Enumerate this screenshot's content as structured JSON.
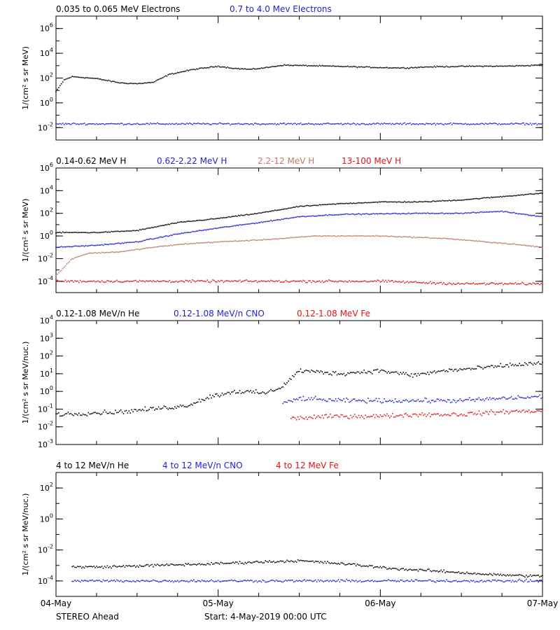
{
  "colors": {
    "black": "#000000",
    "blue": "#1f1fd6",
    "tan": "#c07a68",
    "red": "#e01414"
  },
  "x_axis": {
    "range": [
      "04-May",
      "07-May"
    ],
    "ticks": [
      "04-May",
      "05-May",
      "06-May",
      "07-May"
    ]
  },
  "footer": {
    "left": "STEREO Ahead",
    "start": "Start:  4-May-2019 00:00 UTC"
  },
  "chart_data": [
    {
      "type": "scatter",
      "ylabel": "1/(cm² s sr MeV)",
      "yscale": "log",
      "ylim": [
        0.001,
        10000000
      ],
      "yticks": [
        {
          "label": "10^-2",
          "value": 0.01
        },
        {
          "label": "10^0",
          "value": 1
        },
        {
          "label": "10^2",
          "value": 100
        },
        {
          "label": "10^4",
          "value": 10000
        },
        {
          "label": "10^6",
          "value": 1000000
        }
      ],
      "series": [
        {
          "name": "0.035 to 0.065 MeV Electrons",
          "color": "#000000",
          "x": [
            0.0,
            0.05,
            0.1,
            0.25,
            0.4,
            0.5,
            0.6,
            0.7,
            0.85,
            1.0,
            1.1,
            1.2,
            1.3,
            1.4,
            1.55,
            1.7,
            1.85,
            2.0,
            2.15,
            2.3,
            2.45,
            2.6,
            2.75,
            2.9,
            3.0
          ],
          "y": [
            8,
            70,
            130,
            90,
            40,
            35,
            45,
            200,
            500,
            900,
            600,
            500,
            700,
            1100,
            1000,
            900,
            800,
            700,
            650,
            800,
            850,
            900,
            900,
            1000,
            1200
          ]
        },
        {
          "name": "0.7 to 4.0 Mev Electrons",
          "color": "#1f1fd6",
          "x": [
            0.0,
            3.0
          ],
          "y": [
            0.02,
            0.02
          ]
        }
      ]
    },
    {
      "type": "scatter",
      "ylabel": "1/(cm² s sr MeV)",
      "yscale": "log",
      "ylim": [
        1e-05,
        1000000
      ],
      "yticks": [
        {
          "label": "10^-4",
          "value": 0.0001
        },
        {
          "label": "10^-2",
          "value": 0.01
        },
        {
          "label": "10^0",
          "value": 1
        },
        {
          "label": "10^2",
          "value": 100
        },
        {
          "label": "10^4",
          "value": 10000
        },
        {
          "label": "10^6",
          "value": 1000000
        }
      ],
      "series": [
        {
          "name": "0.14-0.62 MeV H",
          "color": "#000000",
          "x": [
            0.0,
            0.25,
            0.5,
            0.75,
            1.0,
            1.25,
            1.5,
            1.75,
            2.0,
            2.25,
            2.5,
            2.75,
            3.0
          ],
          "y": [
            2,
            2,
            3,
            15,
            35,
            100,
            400,
            700,
            1000,
            1000,
            1500,
            3000,
            6000
          ]
        },
        {
          "name": "0.62-2.22 MeV H",
          "color": "#1f1fd6",
          "x": [
            0.0,
            0.25,
            0.5,
            0.75,
            1.0,
            1.25,
            1.5,
            1.75,
            2.0,
            2.25,
            2.5,
            2.75,
            3.0
          ],
          "y": [
            0.1,
            0.15,
            0.3,
            1.5,
            5,
            15,
            50,
            80,
            90,
            100,
            100,
            150,
            50
          ]
        },
        {
          "name": "2.2-12 MeV H",
          "color": "#c07a68",
          "x": [
            0.0,
            0.1,
            0.2,
            0.4,
            0.6,
            0.8,
            1.0,
            1.2,
            1.4,
            1.6,
            2.0,
            2.4,
            2.8,
            3.0
          ],
          "y": [
            0.0003,
            0.01,
            0.03,
            0.04,
            0.1,
            0.2,
            0.3,
            0.4,
            0.6,
            1,
            1,
            0.6,
            0.2,
            0.1
          ]
        },
        {
          "name": "13-100 MeV H",
          "color": "#e01414",
          "x": [
            0.0,
            0.5,
            1.0,
            1.5,
            2.0,
            2.5,
            3.0
          ],
          "y": [
            0.0001,
            0.0001,
            0.0001,
            0.0001,
            0.0001,
            6e-05,
            6e-05
          ]
        }
      ]
    },
    {
      "type": "scatter",
      "ylabel": "1/(cm² s sr MeV/nuc.)",
      "yscale": "log",
      "ylim": [
        0.001,
        10000
      ],
      "yticks": [
        {
          "label": "10^-3",
          "value": 0.001
        },
        {
          "label": "10^-2",
          "value": 0.01
        },
        {
          "label": "10^-1",
          "value": 0.1
        },
        {
          "label": "10^0",
          "value": 1
        },
        {
          "label": "10^1",
          "value": 10
        },
        {
          "label": "10^2",
          "value": 100
        },
        {
          "label": "10^3",
          "value": 1000
        },
        {
          "label": "10^4",
          "value": 10000
        }
      ],
      "series": [
        {
          "name": "0.12-1.08 MeV/n He",
          "color": "#000000",
          "x": [
            0.0,
            0.4,
            0.8,
            0.95,
            1.1,
            1.3,
            1.4,
            1.5,
            1.75,
            2.0,
            2.2,
            2.4,
            2.6,
            2.8,
            3.0
          ],
          "y": [
            0.05,
            0.07,
            0.15,
            0.5,
            1,
            0.8,
            2,
            15,
            10,
            15,
            8,
            15,
            20,
            30,
            40
          ]
        },
        {
          "name": "0.12-1.08 MeV/n CNO",
          "color": "#1f1fd6",
          "x": [
            1.4,
            1.5,
            1.75,
            2.0,
            2.25,
            2.5,
            2.75,
            3.0
          ],
          "y": [
            0.2,
            0.4,
            0.3,
            0.3,
            0.3,
            0.3,
            0.4,
            0.5
          ]
        },
        {
          "name": "0.12-1.08 MeV Fe",
          "color": "#e01414",
          "x": [
            1.45,
            1.75,
            2.0,
            2.25,
            2.5,
            2.75,
            3.0
          ],
          "y": [
            0.03,
            0.04,
            0.04,
            0.05,
            0.05,
            0.07,
            0.08
          ]
        }
      ]
    },
    {
      "type": "scatter",
      "ylabel": "1/(cm² s sr MeV/nuc.)",
      "yscale": "log",
      "ylim": [
        1e-05,
        1000
      ],
      "yticks": [
        {
          "label": "10^-4",
          "value": 0.0001
        },
        {
          "label": "10^-2",
          "value": 0.01
        },
        {
          "label": "10^0",
          "value": 1
        },
        {
          "label": "10^2",
          "value": 100
        }
      ],
      "series": [
        {
          "name": "4 to 12 MeV/n He",
          "color": "#000000",
          "x": [
            0.1,
            0.3,
            0.6,
            0.9,
            1.2,
            1.5,
            1.8,
            2.1,
            2.4,
            2.7,
            3.0
          ],
          "y": [
            0.0008,
            0.0008,
            0.001,
            0.0012,
            0.0016,
            0.002,
            0.0012,
            0.0006,
            0.0004,
            0.00025,
            0.0002
          ]
        },
        {
          "name": "4 to 12 MeV/n CNO",
          "color": "#1f1fd6",
          "x": [
            0.1,
            3.0
          ],
          "y": [
            0.0001,
            0.0001
          ]
        },
        {
          "name": "4 to 12 MeV Fe",
          "color": "#e01414",
          "x": [],
          "y": []
        }
      ]
    }
  ]
}
